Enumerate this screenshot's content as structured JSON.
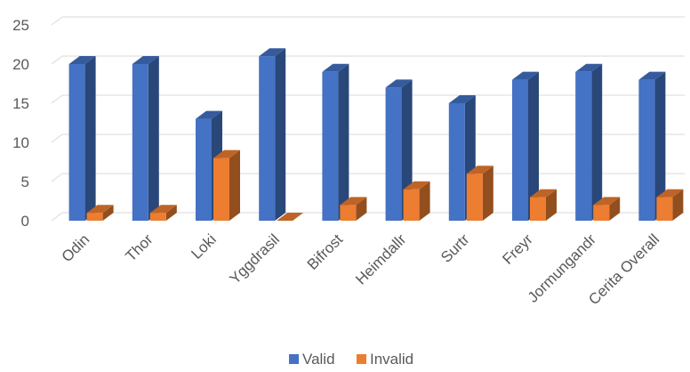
{
  "chart_data": {
    "type": "bar",
    "style": "3d-clustered-column",
    "categories": [
      "Odin",
      "Thor",
      "Loki",
      "Yggdrasil",
      "Bifrost",
      "Heimdallr",
      "Surtr",
      "Freyr",
      "Jormungandr",
      "Cerita Overall"
    ],
    "series": [
      {
        "name": "Valid",
        "color": "#4472c4",
        "values": [
          20,
          20,
          13,
          21,
          19,
          17,
          15,
          18,
          19,
          18
        ]
      },
      {
        "name": "Invalid",
        "color": "#ed7d31",
        "values": [
          1,
          1,
          8,
          0,
          2,
          4,
          6,
          3,
          2,
          3
        ]
      }
    ],
    "yticks": [
      0,
      5,
      10,
      15,
      20,
      25
    ],
    "ylim": [
      0,
      25
    ],
    "grid": true,
    "legend": "bottom-center"
  }
}
